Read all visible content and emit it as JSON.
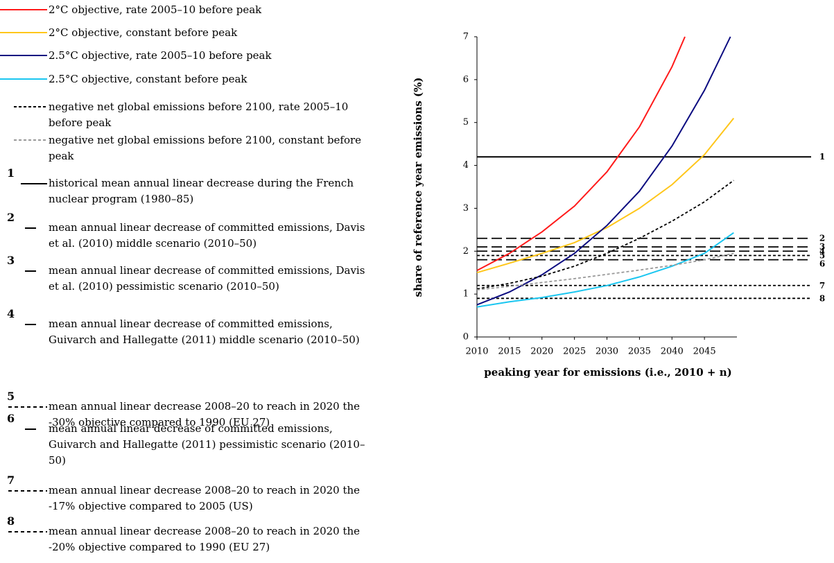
{
  "chart_data": {
    "type": "line",
    "x_label": "peaking year for emissions (i.e., 2010 + n)",
    "y_label": "share of reference year emissions (%)",
    "xlim": [
      2010,
      2050
    ],
    "xticks": [
      2010,
      2015,
      2020,
      2025,
      2030,
      2035,
      2040,
      2045
    ],
    "ylim": [
      0,
      7
    ],
    "yticks": [
      0,
      1,
      2,
      3,
      4,
      5,
      6,
      7
    ],
    "series": [
      {
        "name": "2°C objective, rate 2005–10 before peak",
        "color": "#ff1a1a",
        "style": "solid",
        "x": [
          2010,
          2015,
          2020,
          2025,
          2030,
          2035,
          2040,
          2042
        ],
        "values": [
          1.55,
          1.95,
          2.45,
          3.05,
          3.85,
          4.9,
          6.3,
          7.0
        ]
      },
      {
        "name": "2°C objective, constant before peak",
        "color": "#ffc61a",
        "style": "solid",
        "x": [
          2010,
          2015,
          2020,
          2025,
          2030,
          2035,
          2040,
          2045,
          2049.5
        ],
        "values": [
          1.5,
          1.72,
          1.95,
          2.2,
          2.55,
          3.0,
          3.55,
          4.25,
          5.1
        ]
      },
      {
        "name": "2.5°C objective, rate 2005–10 before peak",
        "color": "#0b0b80",
        "style": "solid",
        "x": [
          2010,
          2015,
          2020,
          2025,
          2030,
          2035,
          2040,
          2045,
          2049
        ],
        "values": [
          0.75,
          1.05,
          1.45,
          1.95,
          2.6,
          3.4,
          4.45,
          5.75,
          7.0
        ]
      },
      {
        "name": "2.5°C objective, constant before peak",
        "color": "#1ac6f0",
        "style": "solid",
        "x": [
          2010,
          2015,
          2020,
          2025,
          2030,
          2035,
          2040,
          2045,
          2049.5
        ],
        "values": [
          0.7,
          0.82,
          0.92,
          1.05,
          1.2,
          1.4,
          1.65,
          1.95,
          2.43
        ]
      },
      {
        "name": "negative net global emissions before 2100, rate 2005–10 before peak",
        "color": "#000000",
        "style": "dotted",
        "x": [
          2010,
          2015,
          2020,
          2025,
          2030,
          2035,
          2040,
          2045,
          2049.5
        ],
        "values": [
          1.12,
          1.25,
          1.42,
          1.65,
          1.95,
          2.3,
          2.7,
          3.15,
          3.65
        ]
      },
      {
        "name": "negative net global emissions before 2100, constant before peak",
        "color": "#999999",
        "style": "dotted",
        "x": [
          2010,
          2015,
          2020,
          2025,
          2030,
          2035,
          2040,
          2045,
          2049.5
        ],
        "values": [
          1.1,
          1.18,
          1.27,
          1.36,
          1.46,
          1.56,
          1.67,
          1.8,
          1.95
        ]
      }
    ],
    "reference_lines": [
      {
        "label": "1",
        "name": "historical mean annual linear decrease during the French nuclear program (1980–85)",
        "value": 4.2,
        "style": "solid"
      },
      {
        "label": "2",
        "name": "mean annual linear decrease of committed emissions, Davis et al. (2010) middle scenario (2010–50)",
        "value": 2.3,
        "style": "long"
      },
      {
        "label": "3",
        "name": "mean annual linear decrease of committed emissions, Davis et al. (2010) pessimistic scenario (2010–50)",
        "value": 2.1,
        "style": "long"
      },
      {
        "label": "4",
        "name": "mean annual linear decrease of committed emissions, Guivarch and Hallegatte (2011) middle scenario (2010–50)",
        "value": 2.0,
        "style": "long"
      },
      {
        "label": "5",
        "name": "mean annual linear decrease 2008–20 to reach in 2020 the -30% objective compared to 1990 (EU 27)",
        "value": 1.9,
        "style": "dotted"
      },
      {
        "label": "6",
        "name": "mean annual linear decrease of committed emissions, Guivarch and Hallegatte (2011) pessimistic scenario (2010–50)",
        "value": 1.8,
        "style": "long"
      },
      {
        "label": "7",
        "name": "mean annual linear decrease 2008–20 to reach in 2020 the -17% objective compared to 2005 (US)",
        "value": 1.2,
        "style": "dotted"
      },
      {
        "label": "8",
        "name": "mean annual linear decrease 2008–20 to reach in 2020 the -20% objective compared to 1990 (EU 27)",
        "value": 0.9,
        "style": "dotted"
      }
    ]
  }
}
